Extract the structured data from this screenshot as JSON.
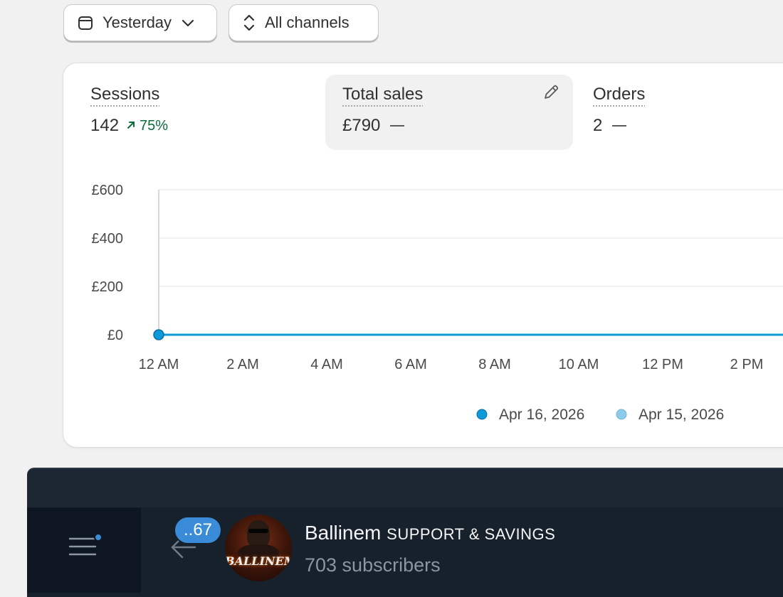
{
  "filters": {
    "date_label": "Yesterday",
    "channels_label": "All channels"
  },
  "metrics": {
    "sessions": {
      "label": "Sessions",
      "value": "142",
      "change": "75%"
    },
    "total_sales": {
      "label": "Total sales",
      "value": "£790"
    },
    "orders": {
      "label": "Orders",
      "value": "2"
    }
  },
  "chart_data": {
    "type": "line",
    "title": "",
    "y_ticks": [
      "£600",
      "£400",
      "£200",
      "£0"
    ],
    "y_tick_values": [
      600,
      400,
      200,
      0
    ],
    "ylim": [
      0,
      600
    ],
    "x_ticks": [
      "12 AM",
      "2 AM",
      "4 AM",
      "6 AM",
      "8 AM",
      "10 AM",
      "12 PM",
      "2 PM"
    ],
    "grid": true,
    "legend_position": "bottom-right",
    "series": [
      {
        "name": "Apr 16, 2026",
        "color": "#0e9ad8",
        "x": [
          "12 AM",
          "2 PM"
        ],
        "values": [
          0,
          0
        ]
      },
      {
        "name": "Apr 15, 2026",
        "color": "#8ccbea",
        "x": [
          "12 AM",
          "2 PM"
        ],
        "values": [
          0,
          0
        ]
      }
    ]
  },
  "channel": {
    "unread_badge": "..67",
    "name": "Ballinem",
    "name_rest": "SUPPORT & SAVINGS",
    "subscribers": "703 subscribers",
    "avatar_text": "BALLINEM"
  },
  "colors": {
    "accent_blue": "#0e9ad8",
    "trend_green": "#0b6b3a",
    "dark_bg": "#17212b",
    "badge_blue": "#3a8cd8"
  }
}
